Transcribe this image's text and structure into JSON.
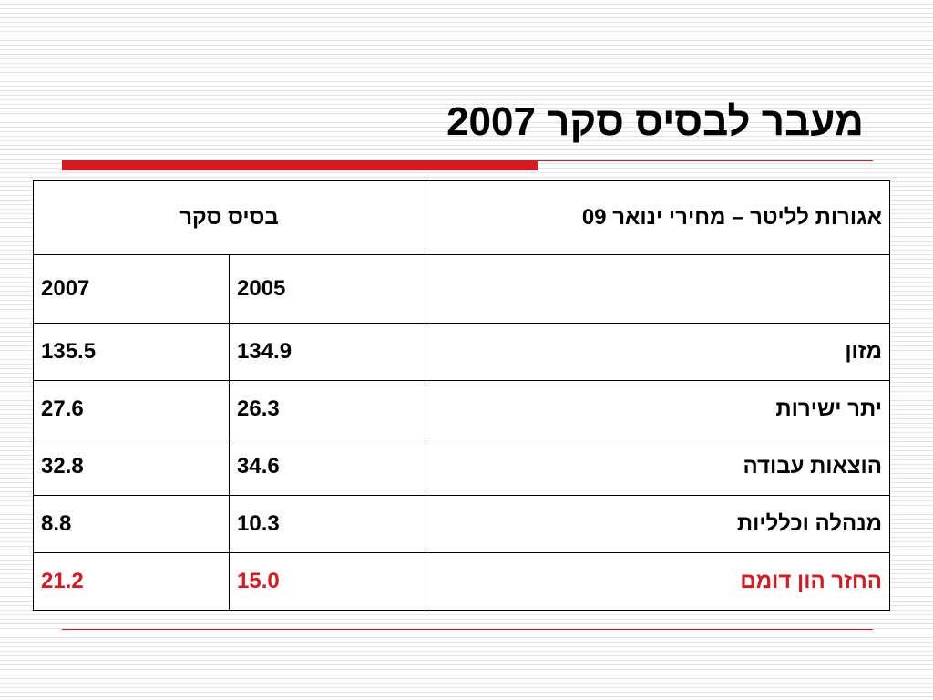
{
  "title": "מעבר לבסיס סקר 2007",
  "accent_color": "#d71921",
  "table": {
    "header_label": "אגורות לליטר – מחירי ינואר 09",
    "group_label": "בסיס סקר",
    "years": [
      "2005",
      "2007"
    ],
    "rows": [
      {
        "label": "מזון",
        "v2005": "134.9",
        "v2007": "135.5"
      },
      {
        "label": "יתר ישירות",
        "v2005": "26.3",
        "v2007": "27.6"
      },
      {
        "label": "הוצאות עבודה",
        "v2005": "34.6",
        "v2007": "32.8"
      },
      {
        "label": "מנהלה וכלליות",
        "v2005": "10.3",
        "v2007": "8.8"
      },
      {
        "label": "החזר הון דומם",
        "v2005": "15.0",
        "v2007": "21.2"
      }
    ]
  }
}
